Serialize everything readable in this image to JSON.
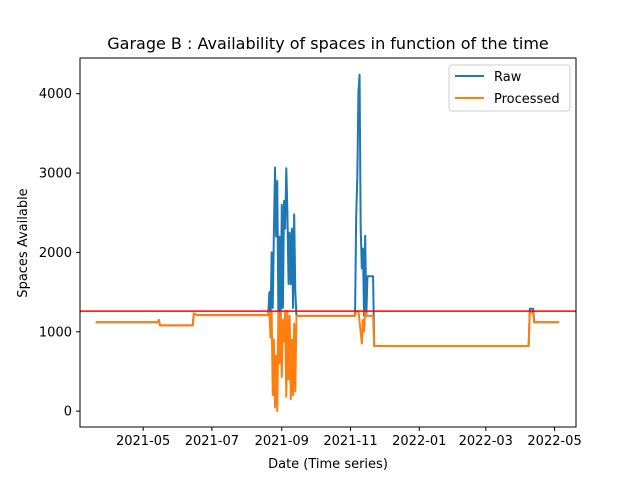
{
  "chart_data": {
    "type": "line",
    "title": "Garage B : Availability of spaces in function of the time",
    "xlabel": "Date (Time series)",
    "ylabel": "Spaces Available",
    "xlim": [
      "2021-03-06",
      "2022-05-20"
    ],
    "ylim": [
      -200,
      4450
    ],
    "x_ticks": [
      "2021-05-01",
      "2021-07-01",
      "2021-09-01",
      "2021-11-01",
      "2022-01-01",
      "2022-03-01",
      "2022-05-01"
    ],
    "x_tick_labels": [
      "2021-05",
      "2021-07",
      "2021-09",
      "2021-11",
      "2022-01",
      "2022-03",
      "2022-05"
    ],
    "y_ticks": [
      0,
      1000,
      2000,
      3000,
      4000
    ],
    "y_tick_labels": [
      "0",
      "1000",
      "2000",
      "3000",
      "4000"
    ],
    "grid": false,
    "legend_position": "top-right",
    "colors": {
      "raw": "#1f77b4",
      "processed": "#ff7f0e",
      "threshold": "#ff0000"
    },
    "threshold": {
      "value": 1260,
      "color": "#ff0000"
    },
    "series": [
      {
        "name": "Raw",
        "color": "#1f77b4",
        "points": [
          [
            "2021-03-20",
            1120
          ],
          [
            "2021-05-14",
            1120
          ],
          [
            "2021-05-15",
            1150
          ],
          [
            "2021-05-16",
            1080
          ],
          [
            "2021-06-14",
            1080
          ],
          [
            "2021-06-15",
            1230
          ],
          [
            "2021-06-18",
            1210
          ],
          [
            "2021-08-20",
            1210
          ],
          [
            "2021-08-21",
            1500
          ],
          [
            "2021-08-22",
            1100
          ],
          [
            "2021-08-23",
            2000
          ],
          [
            "2021-08-24",
            1300
          ],
          [
            "2021-08-25",
            2250
          ],
          [
            "2021-08-26",
            3070
          ],
          [
            "2021-08-27",
            2200
          ],
          [
            "2021-08-28",
            2900
          ],
          [
            "2021-08-29",
            1200
          ],
          [
            "2021-08-30",
            2200
          ],
          [
            "2021-08-31",
            1000
          ],
          [
            "2021-09-01",
            2600
          ],
          [
            "2021-09-02",
            1300
          ],
          [
            "2021-09-03",
            2650
          ],
          [
            "2021-09-04",
            2300
          ],
          [
            "2021-09-05",
            3060
          ],
          [
            "2021-09-06",
            2500
          ],
          [
            "2021-09-07",
            1600
          ],
          [
            "2021-09-08",
            2250
          ],
          [
            "2021-09-09",
            1600
          ],
          [
            "2021-09-10",
            2300
          ],
          [
            "2021-09-11",
            1300
          ],
          [
            "2021-09-12",
            2480
          ],
          [
            "2021-09-13",
            1500
          ],
          [
            "2021-09-14",
            1200
          ],
          [
            "2021-11-05",
            1200
          ],
          [
            "2021-11-06",
            2450
          ],
          [
            "2021-11-07",
            2940
          ],
          [
            "2021-11-08",
            4020
          ],
          [
            "2021-11-09",
            4240
          ],
          [
            "2021-11-10",
            2300
          ],
          [
            "2021-11-11",
            1800
          ],
          [
            "2021-11-12",
            2050
          ],
          [
            "2021-11-13",
            1200
          ],
          [
            "2021-11-14",
            2210
          ],
          [
            "2021-11-15",
            1200
          ],
          [
            "2021-11-16",
            1700
          ],
          [
            "2021-11-21",
            1700
          ],
          [
            "2021-11-22",
            820
          ],
          [
            "2022-04-08",
            820
          ],
          [
            "2022-04-09",
            1290
          ],
          [
            "2022-04-12",
            1290
          ],
          [
            "2022-04-13",
            1120
          ],
          [
            "2022-05-05",
            1120
          ]
        ]
      },
      {
        "name": "Processed",
        "color": "#ff7f0e",
        "points": [
          [
            "2021-03-20",
            1120
          ],
          [
            "2021-05-14",
            1120
          ],
          [
            "2021-05-15",
            1150
          ],
          [
            "2021-05-16",
            1080
          ],
          [
            "2021-06-14",
            1080
          ],
          [
            "2021-06-15",
            1230
          ],
          [
            "2021-06-18",
            1210
          ],
          [
            "2021-08-20",
            1210
          ],
          [
            "2021-08-21",
            1260
          ],
          [
            "2021-08-22",
            930
          ],
          [
            "2021-08-23",
            1260
          ],
          [
            "2021-08-24",
            200
          ],
          [
            "2021-08-25",
            900
          ],
          [
            "2021-08-26",
            50
          ],
          [
            "2021-08-27",
            700
          ],
          [
            "2021-08-28",
            0
          ],
          [
            "2021-08-29",
            1260
          ],
          [
            "2021-08-30",
            600
          ],
          [
            "2021-08-31",
            1260
          ],
          [
            "2021-09-01",
            430
          ],
          [
            "2021-09-02",
            1150
          ],
          [
            "2021-09-03",
            880
          ],
          [
            "2021-09-04",
            1260
          ],
          [
            "2021-09-05",
            180
          ],
          [
            "2021-09-06",
            1260
          ],
          [
            "2021-09-07",
            400
          ],
          [
            "2021-09-08",
            1200
          ],
          [
            "2021-09-09",
            150
          ],
          [
            "2021-09-10",
            900
          ],
          [
            "2021-09-11",
            200
          ],
          [
            "2021-09-12",
            1100
          ],
          [
            "2021-09-13",
            250
          ],
          [
            "2021-09-14",
            1200
          ],
          [
            "2021-11-05",
            1200
          ],
          [
            "2021-11-06",
            1260
          ],
          [
            "2021-11-08",
            1260
          ],
          [
            "2021-11-10",
            1000
          ],
          [
            "2021-11-11",
            850
          ],
          [
            "2021-11-12",
            1150
          ],
          [
            "2021-11-13",
            1000
          ],
          [
            "2021-11-14",
            1260
          ],
          [
            "2021-11-15",
            1200
          ],
          [
            "2021-11-21",
            1200
          ],
          [
            "2021-11-22",
            820
          ],
          [
            "2022-04-08",
            820
          ],
          [
            "2022-04-09",
            1240
          ],
          [
            "2022-04-12",
            1240
          ],
          [
            "2022-04-13",
            1120
          ],
          [
            "2022-05-05",
            1120
          ]
        ]
      }
    ]
  }
}
